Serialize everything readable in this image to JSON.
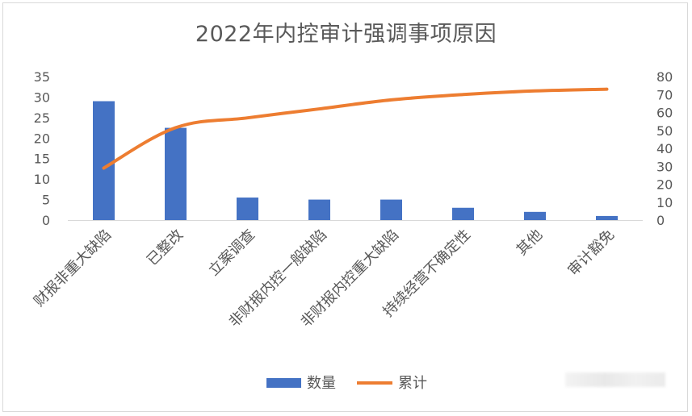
{
  "chart_data": {
    "type": "bar+line",
    "title": "2022年内控审计强调事项原因",
    "categories": [
      "财报非重大缺陷",
      "已整改",
      "立案调查",
      "非财报内控一般缺陷",
      "非财报内控重大缺陷",
      "持续经营不确定性",
      "其他",
      "审计豁免"
    ],
    "series": [
      {
        "name": "数量",
        "type": "bar",
        "axis": "left",
        "color": "#4472C4",
        "values": [
          29,
          22.5,
          5.5,
          5,
          5,
          3,
          2,
          1
        ]
      },
      {
        "name": "累计",
        "type": "line",
        "axis": "right",
        "color": "#ED7D31",
        "values": [
          29,
          51.5,
          57,
          62,
          67,
          70,
          72,
          73
        ]
      }
    ],
    "y_left": {
      "min": 0,
      "max": 35,
      "step": 5,
      "ticks": [
        "0",
        "5",
        "10",
        "15",
        "20",
        "25",
        "30",
        "35"
      ]
    },
    "y_right": {
      "min": 0,
      "max": 80,
      "step": 10,
      "ticks": [
        "0",
        "10",
        "20",
        "30",
        "40",
        "50",
        "60",
        "70",
        "80"
      ]
    },
    "grid": false,
    "legend": {
      "position": "bottom"
    }
  }
}
